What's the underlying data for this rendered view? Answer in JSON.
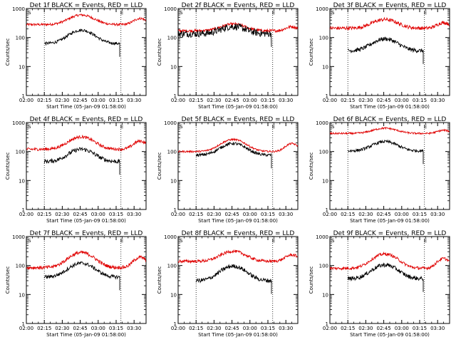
{
  "chart_data": [
    {
      "type": "line",
      "title": "Det 1f BLACK = Events, RED = LLD",
      "xlabel": "Start Time (05-Jan-09 01:58:00)",
      "ylabel": "Counts/sec",
      "yscale": "log",
      "ylim": [
        1,
        1000
      ],
      "series": [
        {
          "name": "LLD",
          "color": "#e00000",
          "base": 280,
          "peak": 600,
          "start": 0.0,
          "end": 1.0,
          "noise": 0.04
        },
        {
          "name": "Events",
          "color": "#000000",
          "base": 62,
          "peak": 180,
          "start": 0.15,
          "end": 0.78,
          "noise": 0.05
        }
      ]
    },
    {
      "type": "line",
      "title": "Det 2f BLACK = Events, RED = LLD",
      "xlabel": "Start Time (05-Jan-09 01:58:00)",
      "ylabel": "Counts/sec",
      "yscale": "log",
      "ylim": [
        1,
        1000
      ],
      "series": [
        {
          "name": "LLD",
          "color": "#e00000",
          "base": 170,
          "peak": 290,
          "start": 0.0,
          "end": 1.0,
          "noise": 0.05
        },
        {
          "name": "Events",
          "color": "#000000",
          "base": 135,
          "peak": 240,
          "start": 0.0,
          "end": 0.78,
          "noise": 0.12
        }
      ]
    },
    {
      "type": "line",
      "title": "Det 3f BLACK = Events, RED = LLD",
      "xlabel": "Start Time (05-Jan-09 01:58:00)",
      "ylabel": "Counts/sec",
      "yscale": "log",
      "ylim": [
        1,
        1000
      ],
      "series": [
        {
          "name": "LLD",
          "color": "#e00000",
          "base": 210,
          "peak": 420,
          "start": 0.0,
          "end": 1.0,
          "noise": 0.06
        },
        {
          "name": "Events",
          "color": "#000000",
          "base": 35,
          "peak": 90,
          "start": 0.15,
          "end": 0.78,
          "noise": 0.07
        }
      ]
    },
    {
      "type": "line",
      "title": "Det 4f BLACK = Events, RED = LLD",
      "xlabel": "Start Time (05-Jan-09 01:58:00)",
      "ylabel": "Counts/sec",
      "yscale": "log",
      "ylim": [
        1,
        1000
      ],
      "series": [
        {
          "name": "LLD",
          "color": "#e00000",
          "base": 120,
          "peak": 320,
          "start": 0.0,
          "end": 1.0,
          "noise": 0.05
        },
        {
          "name": "Events",
          "color": "#000000",
          "base": 45,
          "peak": 120,
          "start": 0.15,
          "end": 0.78,
          "noise": 0.07
        }
      ]
    },
    {
      "type": "line",
      "title": "Det 5f BLACK = Events, RED = LLD",
      "xlabel": "Start Time (05-Jan-09 01:58:00)",
      "ylabel": "Counts/sec",
      "yscale": "log",
      "ylim": [
        1,
        1000
      ],
      "series": [
        {
          "name": "LLD",
          "color": "#e00000",
          "base": 100,
          "peak": 260,
          "start": 0.0,
          "end": 1.0,
          "noise": 0.03
        },
        {
          "name": "Events",
          "color": "#000000",
          "base": 75,
          "peak": 190,
          "start": 0.15,
          "end": 0.78,
          "noise": 0.05
        }
      ]
    },
    {
      "type": "line",
      "title": "Det 6f BLACK = Events, RED = LLD",
      "xlabel": "Start Time (05-Jan-09 01:58:00)",
      "ylabel": "Counts/sec",
      "yscale": "log",
      "ylim": [
        1,
        1000
      ],
      "series": [
        {
          "name": "LLD",
          "color": "#e00000",
          "base": 420,
          "peak": 640,
          "start": 0.0,
          "end": 1.0,
          "noise": 0.03
        },
        {
          "name": "Events",
          "color": "#000000",
          "base": 105,
          "peak": 220,
          "start": 0.15,
          "end": 0.78,
          "noise": 0.05
        }
      ]
    },
    {
      "type": "line",
      "title": "Det 7f BLACK = Events, RED = LLD",
      "xlabel": "Start Time (05-Jan-09 01:58:00)",
      "ylabel": "Counts/sec",
      "yscale": "log",
      "ylim": [
        1,
        1000
      ],
      "series": [
        {
          "name": "LLD",
          "color": "#e00000",
          "base": 85,
          "peak": 280,
          "start": 0.0,
          "end": 1.0,
          "noise": 0.06
        },
        {
          "name": "Events",
          "color": "#000000",
          "base": 40,
          "peak": 120,
          "start": 0.15,
          "end": 0.78,
          "noise": 0.06
        }
      ]
    },
    {
      "type": "line",
      "title": "Det 8f BLACK = Events, RED = LLD",
      "xlabel": "Start Time (05-Jan-09 01:58:00)",
      "ylabel": "Counts/sec",
      "yscale": "log",
      "ylim": [
        1,
        1000
      ],
      "series": [
        {
          "name": "LLD",
          "color": "#e00000",
          "base": 140,
          "peak": 310,
          "start": 0.0,
          "end": 1.0,
          "noise": 0.05
        },
        {
          "name": "Events",
          "color": "#000000",
          "base": 30,
          "peak": 95,
          "start": 0.15,
          "end": 0.78,
          "noise": 0.07
        }
      ]
    },
    {
      "type": "line",
      "title": "Det 9f BLACK = Events, RED = LLD",
      "xlabel": "Start Time (05-Jan-09 01:58:00)",
      "ylabel": "Counts/sec",
      "yscale": "log",
      "ylim": [
        1,
        1000
      ],
      "series": [
        {
          "name": "LLD",
          "color": "#e00000",
          "base": 80,
          "peak": 250,
          "start": 0.0,
          "end": 1.0,
          "noise": 0.05
        },
        {
          "name": "Events",
          "color": "#000000",
          "base": 35,
          "peak": 105,
          "start": 0.15,
          "end": 0.78,
          "noise": 0.07
        }
      ]
    }
  ],
  "x_ticks": [
    "02:00",
    "02:15",
    "02:30",
    "02:45",
    "03:00",
    "03:15",
    "03:30"
  ],
  "y_ticks": [
    "1",
    "10",
    "100",
    "1000"
  ],
  "marker_s": "S",
  "marker_e": "E"
}
